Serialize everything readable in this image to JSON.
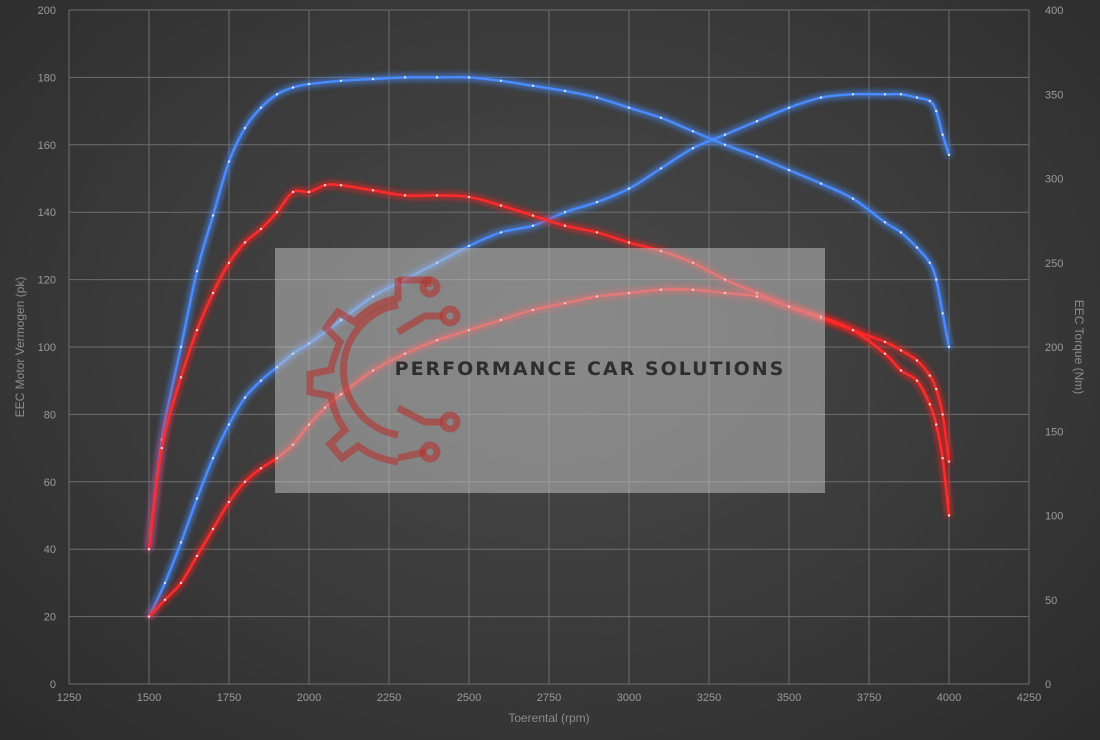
{
  "chart_data": {
    "type": "line",
    "xlabel": "Toerental (rpm)",
    "ylabel_left": "EEC Motor Vermogen (pk)",
    "ylabel_right": "EEC Torque (Nm)",
    "xlim": [
      1250,
      4250
    ],
    "ylim_left": [
      0,
      200
    ],
    "ylim_right": [
      0,
      400
    ],
    "x_ticks": [
      "1250",
      "1500",
      "1750",
      "2000",
      "2250",
      "2500",
      "2750",
      "3000",
      "3250",
      "3500",
      "3750",
      "4000",
      "4250"
    ],
    "y_left_ticks": [
      "0",
      "20",
      "40",
      "60",
      "80",
      "100",
      "120",
      "140",
      "160",
      "180",
      "200"
    ],
    "y_right_ticks": [
      "0",
      "50",
      "100",
      "150",
      "200",
      "250",
      "300",
      "350",
      "400"
    ],
    "grid": true,
    "series": [
      {
        "axis": "right",
        "color": "#4a8cff",
        "x": [
          1500,
          1540,
          1600,
          1650,
          1700,
          1750,
          1800,
          1850,
          1900,
          1950,
          2000,
          2100,
          2200,
          2300,
          2400,
          2500,
          2600,
          2700,
          2800,
          2900,
          3000,
          3100,
          3200,
          3300,
          3400,
          3500,
          3600,
          3700,
          3800,
          3850,
          3900,
          3940,
          3960,
          3980,
          4000
        ],
        "values": [
          80,
          145,
          200,
          245,
          278,
          310,
          330,
          342,
          350,
          354,
          356,
          358,
          359,
          360,
          360,
          360,
          358,
          355,
          352,
          348,
          342,
          336,
          328,
          320,
          313,
          305,
          297,
          288,
          274,
          268,
          259,
          250,
          240,
          220,
          200
        ]
      },
      {
        "axis": "left",
        "color": "#4a8cff",
        "x": [
          1500,
          1550,
          1600,
          1650,
          1700,
          1750,
          1800,
          1850,
          1900,
          1950,
          2000,
          2100,
          2200,
          2300,
          2400,
          2500,
          2600,
          2700,
          2800,
          2900,
          3000,
          3100,
          3200,
          3300,
          3400,
          3500,
          3600,
          3700,
          3800,
          3850,
          3900,
          3940,
          3960,
          3980,
          4000
        ],
        "values": [
          20,
          30,
          42,
          55,
          67,
          77,
          85,
          90,
          94,
          98,
          101,
          108,
          115,
          120,
          125,
          130,
          134,
          136,
          140,
          143,
          147,
          153,
          159,
          163,
          167,
          171,
          174,
          175,
          175,
          175,
          174,
          173,
          170,
          163,
          157
        ]
      },
      {
        "axis": "right",
        "color": "#ff2a2a",
        "x": [
          1500,
          1540,
          1600,
          1650,
          1700,
          1750,
          1800,
          1850,
          1900,
          1950,
          2000,
          2050,
          2100,
          2200,
          2300,
          2400,
          2500,
          2600,
          2700,
          2800,
          2900,
          3000,
          3100,
          3200,
          3300,
          3400,
          3500,
          3600,
          3700,
          3800,
          3850,
          3900,
          3940,
          3960,
          3980,
          4000
        ],
        "values": [
          80,
          140,
          182,
          210,
          232,
          250,
          262,
          270,
          280,
          292,
          292,
          296,
          296,
          293,
          290,
          290,
          289,
          284,
          278,
          272,
          268,
          262,
          257,
          250,
          240,
          232,
          224,
          217,
          210,
          203,
          198,
          192,
          183,
          175,
          160,
          132
        ]
      },
      {
        "axis": "left",
        "color": "#ff2a2a",
        "x": [
          1500,
          1550,
          1600,
          1650,
          1700,
          1750,
          1800,
          1850,
          1900,
          1950,
          2000,
          2050,
          2100,
          2200,
          2300,
          2400,
          2500,
          2600,
          2700,
          2800,
          2900,
          3000,
          3100,
          3200,
          3300,
          3400,
          3500,
          3600,
          3700,
          3800,
          3850,
          3900,
          3940,
          3960,
          3980,
          4000
        ],
        "values": [
          20,
          25,
          30,
          38,
          46,
          54,
          60,
          64,
          67,
          71,
          77,
          82,
          86,
          93,
          98,
          102,
          105,
          108,
          111,
          113,
          115,
          116,
          117,
          117,
          116,
          115,
          112,
          109,
          105,
          98,
          93,
          90,
          83,
          77,
          67,
          50
        ]
      }
    ]
  },
  "watermark": {
    "text": "PERFORMANCE CAR SOLUTIONS"
  }
}
